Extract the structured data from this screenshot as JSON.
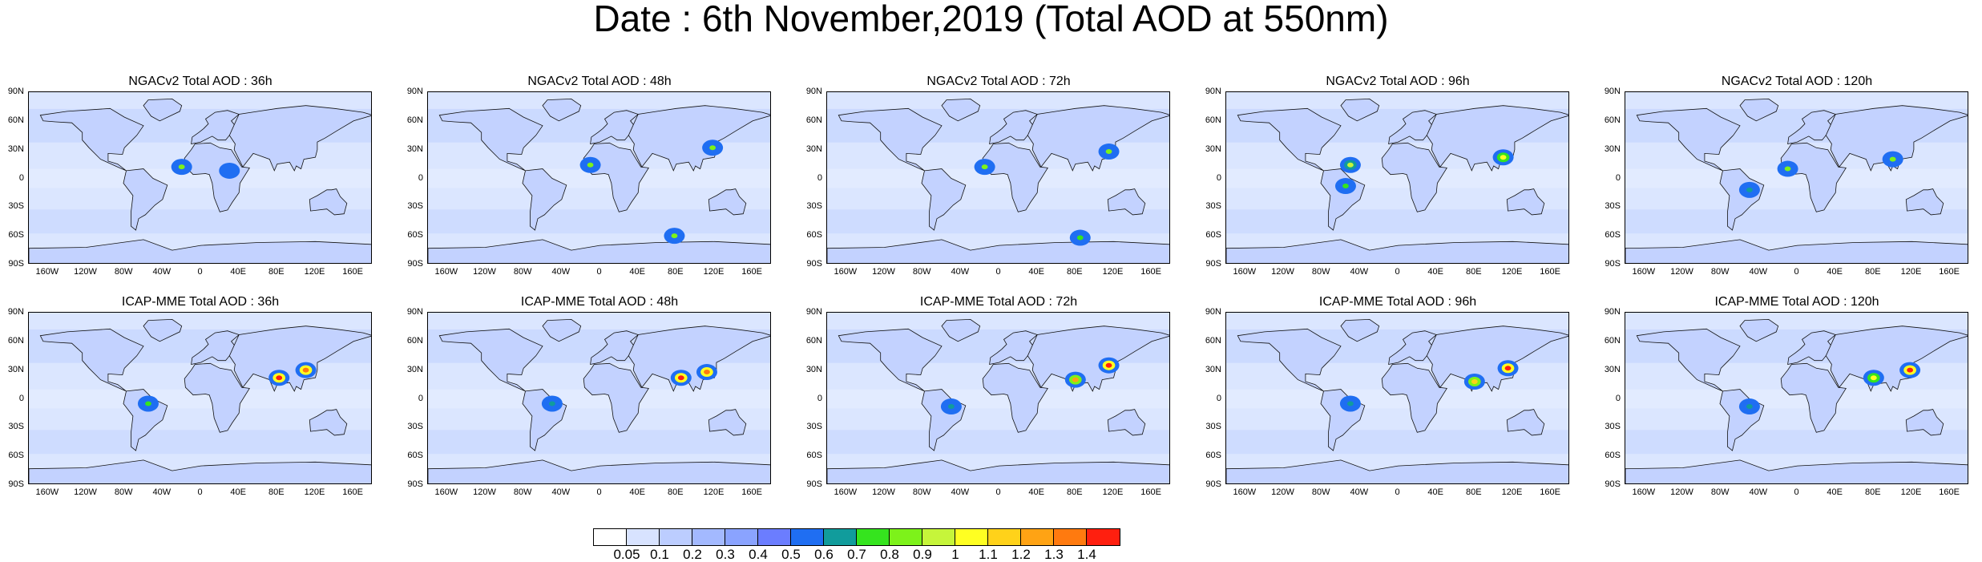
{
  "title": "Date : 6th November,2019 (Total AOD at 550nm)",
  "panels": [
    {
      "title": "NGACv2 Total AOD : 36h",
      "model": "NGACv2",
      "lead": "36h",
      "hotspots": [
        {
          "lon": -20,
          "lat": 12,
          "aod": 0.8
        },
        {
          "lon": 30,
          "lat": 8,
          "aod": 0.5
        }
      ]
    },
    {
      "title": "NGACv2 Total AOD : 48h",
      "model": "NGACv2",
      "lead": "48h",
      "hotspots": [
        {
          "lon": -10,
          "lat": 14,
          "aod": 0.8
        },
        {
          "lon": 118,
          "lat": 32,
          "aod": 0.8
        },
        {
          "lon": 78,
          "lat": -60,
          "aod": 0.8
        }
      ]
    },
    {
      "title": "NGACv2 Total AOD : 72h",
      "model": "NGACv2",
      "lead": "72h",
      "hotspots": [
        {
          "lon": -15,
          "lat": 12,
          "aod": 0.8
        },
        {
          "lon": 115,
          "lat": 28,
          "aod": 0.8
        },
        {
          "lon": 85,
          "lat": -62,
          "aod": 0.7
        }
      ]
    },
    {
      "title": "NGACv2 Total AOD : 96h",
      "model": "NGACv2",
      "lead": "96h",
      "hotspots": [
        {
          "lon": -50,
          "lat": 14,
          "aod": 0.9
        },
        {
          "lon": 110,
          "lat": 22,
          "aod": 1.0
        },
        {
          "lon": -55,
          "lat": -8,
          "aod": 0.7
        }
      ]
    },
    {
      "title": "NGACv2 Total AOD : 120h",
      "model": "NGACv2",
      "lead": "120h",
      "hotspots": [
        {
          "lon": -10,
          "lat": 10,
          "aod": 0.8
        },
        {
          "lon": 100,
          "lat": 20,
          "aod": 0.8
        },
        {
          "lon": -50,
          "lat": -12,
          "aod": 0.6
        }
      ]
    },
    {
      "title": "ICAP-MME Total AOD : 36h",
      "model": "ICAP-MME",
      "lead": "36h",
      "hotspots": [
        {
          "lon": 82,
          "lat": 22,
          "aod": 1.4
        },
        {
          "lon": 110,
          "lat": 30,
          "aod": 1.3
        },
        {
          "lon": -55,
          "lat": -5,
          "aod": 0.7
        }
      ]
    },
    {
      "title": "ICAP-MME Total AOD : 48h",
      "model": "ICAP-MME",
      "lead": "48h",
      "hotspots": [
        {
          "lon": 85,
          "lat": 22,
          "aod": 1.4
        },
        {
          "lon": 112,
          "lat": 28,
          "aod": 1.3
        },
        {
          "lon": -50,
          "lat": -5,
          "aod": 0.6
        }
      ]
    },
    {
      "title": "ICAP-MME Total AOD : 72h",
      "model": "ICAP-MME",
      "lead": "72h",
      "hotspots": [
        {
          "lon": 80,
          "lat": 20,
          "aod": 1.2
        },
        {
          "lon": 115,
          "lat": 35,
          "aod": 1.4
        },
        {
          "lon": -50,
          "lat": -8,
          "aod": 0.6
        }
      ]
    },
    {
      "title": "ICAP-MME Total AOD : 96h",
      "model": "ICAP-MME",
      "lead": "96h",
      "hotspots": [
        {
          "lon": 80,
          "lat": 18,
          "aod": 1.1
        },
        {
          "lon": 115,
          "lat": 32,
          "aod": 1.4
        },
        {
          "lon": -50,
          "lat": -5,
          "aod": 0.6
        }
      ]
    },
    {
      "title": "ICAP-MME Total AOD : 120h",
      "model": "ICAP-MME",
      "lead": "120h",
      "hotspots": [
        {
          "lon": 80,
          "lat": 22,
          "aod": 1.0
        },
        {
          "lon": 118,
          "lat": 30,
          "aod": 1.4
        },
        {
          "lon": -50,
          "lat": -8,
          "aod": 0.6
        }
      ]
    }
  ],
  "axes": {
    "lat_labels": [
      "90N",
      "60N",
      "30N",
      "0",
      "30S",
      "60S",
      "90S"
    ],
    "lon_labels": [
      "160W",
      "120W",
      "80W",
      "40W",
      "0",
      "40E",
      "80E",
      "120E",
      "160E"
    ]
  },
  "colorbar": {
    "labels": [
      "0.05",
      "0.1",
      "0.2",
      "0.3",
      "0.4",
      "0.5",
      "0.6",
      "0.7",
      "0.8",
      "0.9",
      "1",
      "1.1",
      "1.2",
      "1.3",
      "1.4"
    ],
    "colors": [
      "#ffffff",
      "#d8e3ff",
      "#bccdff",
      "#a3b9ff",
      "#8aa3ff",
      "#6b7dff",
      "#1f6ef2",
      "#119c9c",
      "#35e41e",
      "#7df21a",
      "#c6f53a",
      "#ffff22",
      "#ffd21a",
      "#ffa314",
      "#ff7a0f",
      "#ff1f0f"
    ]
  }
}
